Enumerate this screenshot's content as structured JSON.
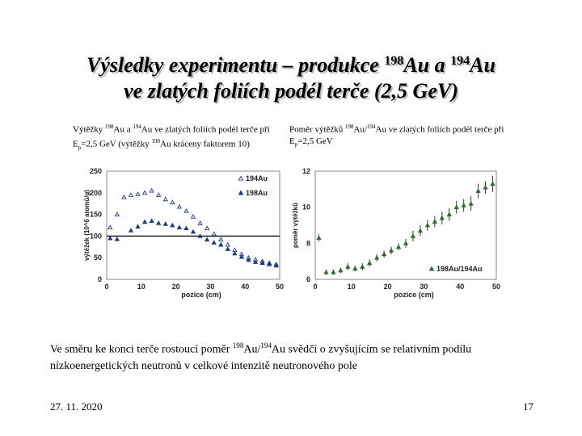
{
  "slide": {
    "title_line1_a": "Výsledky experimentu – produkce ",
    "nuc1": "198",
    "title_line1_b": "Au a ",
    "nuc2": "194",
    "title_line1_c": "Au",
    "title_line2": "ve zlatých foliích podél terče (2,5 GeV)",
    "caption_left_a": "Výtěžky ",
    "caption_left_n1": "198",
    "caption_left_b": "Au a ",
    "caption_left_n2": "194",
    "caption_left_c": "Au ve zlatých foliích podél terče při E",
    "caption_left_sub": "p",
    "caption_left_d": "=2,5  GeV (výtěžky ",
    "caption_left_n3": "198",
    "caption_left_e": "Au kráceny faktorem 10)",
    "caption_right_a": "Poměr výtěžků ",
    "caption_right_n1": "198",
    "caption_right_b": "Au/",
    "caption_right_n2": "194",
    "caption_right_c": "Au ve zlatých foliích podél terče při E",
    "caption_right_sub": "p",
    "caption_right_d": "=2,5 GeV",
    "summary_a": "Ve směru ke konci terče rostoucí poměr ",
    "summary_n1": "198",
    "summary_b": "Au/",
    "summary_n2": "194",
    "summary_c": "Au svědčí o zvyšujícím se relativním podílu nízkoenergetických neutronů v celkové intenzitě neutronového pole",
    "date": "27. 11. 2020",
    "page": "17"
  },
  "chart_data": [
    {
      "type": "scatter",
      "xlabel": "pozice (cm)",
      "ylabel": "výtěžek (10^6 atomů/g)",
      "xlim": [
        0,
        50
      ],
      "ylim": [
        0,
        250
      ],
      "xticks": [
        "0",
        "10",
        "20",
        "30",
        "40",
        "50"
      ],
      "yticks": [
        "0",
        "50",
        "100",
        "150",
        "200",
        "250"
      ],
      "reference_line": 100,
      "grid": false,
      "legend_position": "top-right",
      "series": [
        {
          "name": "194Au",
          "marker": "open-triangle",
          "color": "#1e3a8a",
          "x": [
            1,
            3,
            5,
            7,
            9,
            11,
            13,
            15,
            17,
            19,
            21,
            23,
            25,
            27,
            29,
            31,
            33,
            35,
            37,
            39,
            41,
            43,
            45,
            47,
            49
          ],
          "y": [
            120,
            150,
            190,
            195,
            197,
            200,
            205,
            195,
            185,
            178,
            168,
            158,
            145,
            130,
            118,
            105,
            92,
            80,
            68,
            58,
            50,
            46,
            42,
            38,
            35
          ]
        },
        {
          "name": "198Au",
          "marker": "filled-triangle",
          "color": "#1e3a8a",
          "x": [
            1,
            3,
            7,
            9,
            11,
            13,
            15,
            17,
            19,
            21,
            23,
            25,
            27,
            29,
            31,
            33,
            35,
            37,
            39,
            41,
            43,
            45,
            47,
            49
          ],
          "y": [
            95,
            93,
            113,
            122,
            133,
            135,
            130,
            128,
            125,
            120,
            118,
            110,
            100,
            92,
            85,
            80,
            70,
            60,
            52,
            45,
            40,
            38,
            35,
            32
          ]
        }
      ]
    },
    {
      "type": "scatter",
      "xlabel": "pozice (cm)",
      "ylabel": "poměr výtěžků",
      "xlim": [
        0,
        50
      ],
      "ylim": [
        6,
        12
      ],
      "xticks": [
        "0",
        "10",
        "20",
        "30",
        "40",
        "50"
      ],
      "yticks": [
        "6",
        "8",
        "10",
        "12"
      ],
      "grid": false,
      "legend_position": "bottom-right",
      "series": [
        {
          "name": "198Au/194Au",
          "marker": "filled-triangle-errorbar",
          "color": "#2f6d2f",
          "x": [
            1,
            3,
            5,
            7,
            9,
            11,
            13,
            15,
            17,
            19,
            21,
            23,
            25,
            27,
            29,
            31,
            33,
            35,
            37,
            39,
            41,
            43,
            45,
            47,
            49
          ],
          "y": [
            8.3,
            6.4,
            6.4,
            6.5,
            6.7,
            6.6,
            6.7,
            6.9,
            7.2,
            7.4,
            7.6,
            7.8,
            8.0,
            8.4,
            8.7,
            9.0,
            9.2,
            9.4,
            9.6,
            10.0,
            10.1,
            10.2,
            10.9,
            11.1,
            11.3
          ],
          "error": [
            0.2,
            0.15,
            0.15,
            0.15,
            0.2,
            0.15,
            0.2,
            0.2,
            0.2,
            0.2,
            0.2,
            0.2,
            0.25,
            0.3,
            0.3,
            0.3,
            0.3,
            0.35,
            0.35,
            0.35,
            0.35,
            0.4,
            0.4,
            0.35,
            0.45
          ]
        }
      ]
    }
  ]
}
